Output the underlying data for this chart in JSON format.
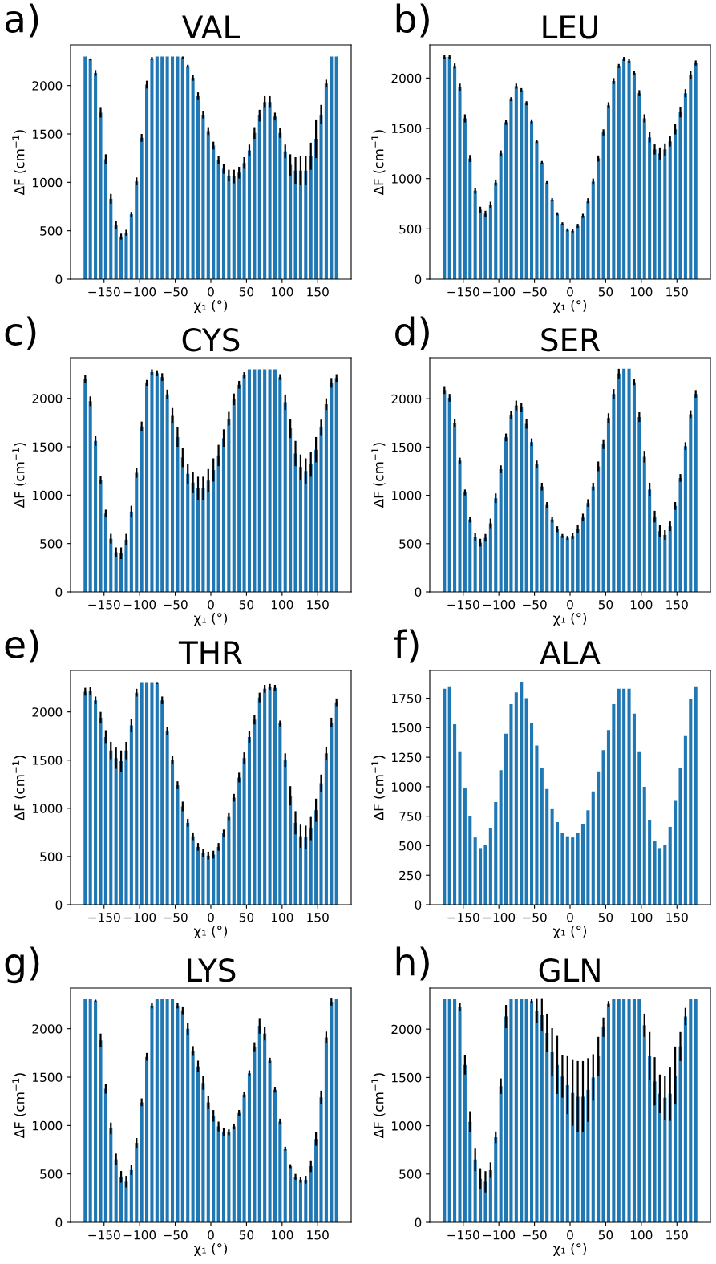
{
  "chart_data": [
    {
      "type": "bar",
      "title": "VAL",
      "annotations": [
        "a)"
      ],
      "xlabel": "χ₁ (°)",
      "ylabel": "ΔF (cm$^{−1}$)",
      "color": "#1f77b4",
      "grid": false,
      "x": [
        -176.4,
        -169.2,
        -162,
        -154.8,
        -147.6,
        -140.4,
        -133.2,
        -126,
        -118.8,
        -111.6,
        -104.4,
        -97.2,
        -90,
        -82.8,
        -75.6,
        -68.4,
        -61.2,
        -54,
        -46.8,
        -39.6,
        -32.4,
        -25.2,
        -18,
        -10.8,
        -3.6,
        3.6,
        10.8,
        18,
        25.2,
        32.4,
        39.6,
        46.8,
        54,
        61.2,
        68.4,
        75.6,
        82.8,
        90,
        97.2,
        104.4,
        111.6,
        118.8,
        126,
        133.2,
        140.4,
        147.6,
        154.8,
        162,
        169.2,
        176.4
      ],
      "values": [
        2300,
        2270,
        2130,
        1720,
        1240,
        830,
        560,
        440,
        480,
        670,
        1010,
        1460,
        2010,
        2280,
        2300,
        2300,
        2300,
        2300,
        2300,
        2290,
        2200,
        2080,
        1890,
        1700,
        1530,
        1380,
        1230,
        1140,
        1070,
        1060,
        1100,
        1200,
        1330,
        1510,
        1690,
        1830,
        1830,
        1680,
        1510,
        1320,
        1180,
        1120,
        1120,
        1120,
        1270,
        1450,
        1700,
        2020,
        2300,
        2300
      ],
      "errors": [
        null,
        10,
        30,
        50,
        50,
        50,
        40,
        30,
        30,
        25,
        40,
        40,
        40,
        15,
        null,
        null,
        null,
        null,
        null,
        10,
        15,
        30,
        40,
        40,
        40,
        40,
        40,
        50,
        60,
        70,
        60,
        60,
        60,
        60,
        60,
        60,
        60,
        40,
        50,
        70,
        110,
        140,
        150,
        150,
        140,
        200,
        100,
        40,
        null,
        null
      ],
      "xlim": [
        -197,
        197
      ],
      "xticks": [
        {
          "value": -150,
          "label": "−150"
        },
        {
          "value": -100,
          "label": "−100"
        },
        {
          "value": -50,
          "label": "−50"
        },
        0,
        50,
        100,
        150
      ],
      "ylim": [
        0,
        2420
      ],
      "yticks": [
        0,
        500,
        1000,
        1500,
        2000
      ]
    },
    {
      "type": "bar",
      "title": "LEU",
      "annotations": [
        "b)"
      ],
      "xlabel": "χ₁ (°)",
      "ylabel": "ΔF (cm$^{−1}$)",
      "color": "#1f77b4",
      "grid": false,
      "x": [
        -176.4,
        -169.2,
        -162,
        -154.8,
        -147.6,
        -140.4,
        -133.2,
        -126,
        -118.8,
        -111.6,
        -104.4,
        -97.2,
        -90,
        -82.8,
        -75.6,
        -68.4,
        -61.2,
        -54,
        -46.8,
        -39.6,
        -32.4,
        -25.2,
        -18,
        -10.8,
        -3.6,
        3.6,
        10.8,
        18,
        25.2,
        32.4,
        39.6,
        46.8,
        54,
        61.2,
        68.4,
        75.6,
        82.8,
        90,
        97.2,
        104.4,
        111.6,
        118.8,
        126,
        133.2,
        140.4,
        147.6,
        154.8,
        162,
        169.2,
        176.4
      ],
      "values": [
        2210,
        2210,
        2120,
        1910,
        1600,
        1200,
        880,
        690,
        650,
        740,
        960,
        1250,
        1560,
        1790,
        1920,
        1880,
        1750,
        1570,
        1370,
        1160,
        960,
        790,
        650,
        550,
        490,
        480,
        530,
        630,
        780,
        970,
        1200,
        1460,
        1730,
        1970,
        2120,
        2190,
        2170,
        2050,
        1850,
        1600,
        1410,
        1290,
        1250,
        1290,
        1370,
        1490,
        1660,
        1850,
        2030,
        2150
      ],
      "errors": [
        20,
        20,
        25,
        35,
        40,
        35,
        30,
        30,
        30,
        30,
        30,
        30,
        25,
        20,
        25,
        20,
        20,
        20,
        15,
        15,
        15,
        15,
        15,
        15,
        15,
        15,
        20,
        20,
        25,
        30,
        30,
        30,
        30,
        30,
        20,
        20,
        20,
        20,
        30,
        40,
        50,
        50,
        60,
        60,
        50,
        50,
        50,
        40,
        40,
        25
      ],
      "xlim": [
        -197,
        197
      ],
      "xticks": [
        {
          "value": -150,
          "label": "−150"
        },
        {
          "value": -100,
          "label": "−100"
        },
        {
          "value": -50,
          "label": "−50"
        },
        0,
        50,
        100,
        150
      ],
      "ylim": [
        0,
        2330
      ],
      "yticks": [
        0,
        500,
        1000,
        1500,
        2000
      ]
    },
    {
      "type": "bar",
      "title": "CYS",
      "annotations": [
        "c)"
      ],
      "xlabel": "χ₁ (°)",
      "ylabel": "ΔF (cm$^{−1}$)",
      "color": "#1f77b4",
      "grid": false,
      "x": [
        -176.4,
        -169.2,
        -162,
        -154.8,
        -147.6,
        -140.4,
        -133.2,
        -126,
        -118.8,
        -111.6,
        -104.4,
        -97.2,
        -90,
        -82.8,
        -75.6,
        -68.4,
        -61.2,
        -54,
        -46.8,
        -39.6,
        -32.4,
        -25.2,
        -18,
        -10.8,
        -3.6,
        3.6,
        10.8,
        18,
        25.2,
        32.4,
        39.6,
        46.8,
        54,
        61.2,
        68.4,
        75.6,
        82.8,
        90,
        97.2,
        104.4,
        111.6,
        118.8,
        126,
        133.2,
        140.4,
        147.6,
        154.8,
        162,
        169.2,
        176.4
      ],
      "values": [
        2200,
        1970,
        1560,
        1160,
        810,
        550,
        410,
        400,
        540,
        830,
        1230,
        1710,
        2160,
        2270,
        2260,
        2220,
        2040,
        1820,
        1600,
        1390,
        1220,
        1130,
        1070,
        1070,
        1150,
        1260,
        1410,
        1590,
        1790,
        1990,
        2140,
        2240,
        2300,
        2300,
        2300,
        2300,
        2300,
        2300,
        2220,
        1960,
        1690,
        1430,
        1290,
        1250,
        1320,
        1470,
        1700,
        1940,
        2160,
        2210
      ],
      "errors": [
        40,
        50,
        50,
        40,
        40,
        50,
        50,
        60,
        60,
        60,
        50,
        50,
        30,
        30,
        30,
        40,
        50,
        80,
        100,
        100,
        100,
        110,
        120,
        120,
        120,
        120,
        110,
        90,
        70,
        60,
        40,
        30,
        null,
        null,
        null,
        null,
        null,
        null,
        30,
        80,
        100,
        130,
        130,
        130,
        130,
        130,
        80,
        60,
        50,
        40
      ],
      "xlim": [
        -197,
        197
      ],
      "xticks": [
        {
          "value": -150,
          "label": "−150"
        },
        {
          "value": -100,
          "label": "−100"
        },
        {
          "value": -50,
          "label": "−50"
        },
        0,
        50,
        100,
        150
      ],
      "ylim": [
        0,
        2420
      ],
      "yticks": [
        0,
        500,
        1000,
        1500,
        2000
      ]
    },
    {
      "type": "bar",
      "title": "SER",
      "annotations": [
        "d)"
      ],
      "xlabel": "χ₁ (°)",
      "ylabel": "ΔF (cm$^{−1}$)",
      "color": "#1f77b4",
      "grid": false,
      "x": [
        -176.4,
        -169.2,
        -162,
        -154.8,
        -147.6,
        -140.4,
        -133.2,
        -126,
        -118.8,
        -111.6,
        -104.4,
        -97.2,
        -90,
        -82.8,
        -75.6,
        -68.4,
        -61.2,
        -54,
        -46.8,
        -39.6,
        -32.4,
        -25.2,
        -18,
        -10.8,
        -3.6,
        3.6,
        10.8,
        18,
        25.2,
        32.4,
        39.6,
        46.8,
        54,
        61.2,
        68.4,
        75.6,
        82.8,
        90,
        97.2,
        104.4,
        111.6,
        118.8,
        126,
        133.2,
        140.4,
        147.6,
        154.8,
        162,
        169.2,
        176.4
      ],
      "values": [
        2090,
        2010,
        1750,
        1360,
        1030,
        750,
        570,
        510,
        560,
        710,
        970,
        1270,
        1600,
        1830,
        1930,
        1910,
        1740,
        1550,
        1320,
        1090,
        900,
        750,
        650,
        580,
        560,
        580,
        650,
        770,
        920,
        1090,
        1300,
        1530,
        1800,
        2050,
        2260,
        2310,
        2310,
        2170,
        1810,
        1400,
        1060,
        780,
        630,
        590,
        680,
        890,
        1180,
        1510,
        1840,
        2050
      ],
      "errors": [
        40,
        40,
        40,
        30,
        30,
        30,
        40,
        40,
        40,
        50,
        50,
        40,
        40,
        40,
        50,
        50,
        50,
        40,
        40,
        40,
        30,
        30,
        30,
        20,
        20,
        30,
        40,
        40,
        40,
        40,
        50,
        50,
        50,
        50,
        50,
        null,
        null,
        30,
        50,
        60,
        70,
        60,
        60,
        50,
        50,
        40,
        40,
        40,
        40,
        40
      ],
      "xlim": [
        -197,
        197
      ],
      "xticks": [
        {
          "value": -150,
          "label": "−150"
        },
        {
          "value": -100,
          "label": "−100"
        },
        {
          "value": -50,
          "label": "−50"
        },
        0,
        50,
        100,
        150
      ],
      "ylim": [
        0,
        2425
      ],
      "yticks": [
        0,
        500,
        1000,
        1500,
        2000
      ]
    },
    {
      "type": "bar",
      "title": "THR",
      "annotations": [
        "e)"
      ],
      "xlabel": "χ₁ (°)",
      "ylabel": "ΔF (cm$^{−1}$)",
      "color": "#1f77b4",
      "grid": false,
      "x": [
        -176.4,
        -169.2,
        -162,
        -154.8,
        -147.6,
        -140.4,
        -133.2,
        -126,
        -118.8,
        -111.6,
        -104.4,
        -97.2,
        -90,
        -82.8,
        -75.6,
        -68.4,
        -61.2,
        -54,
        -46.8,
        -39.6,
        -32.4,
        -25.2,
        -18,
        -10.8,
        -3.6,
        3.6,
        10.8,
        18,
        25.2,
        32.4,
        39.6,
        46.8,
        54,
        61.2,
        68.4,
        75.6,
        82.8,
        90,
        97.2,
        104.4,
        111.6,
        118.8,
        126,
        133.2,
        140.4,
        147.6,
        154.8,
        162,
        169.2,
        176.4
      ],
      "values": [
        2210,
        2220,
        2120,
        1940,
        1740,
        1600,
        1520,
        1490,
        1600,
        1860,
        2200,
        2310,
        2310,
        2310,
        2300,
        2120,
        1800,
        1500,
        1240,
        1020,
        850,
        710,
        600,
        540,
        510,
        520,
        600,
        740,
        910,
        1110,
        1320,
        1520,
        1740,
        1920,
        2150,
        2240,
        2260,
        2250,
        1880,
        1500,
        1130,
        850,
        710,
        700,
        790,
        980,
        1260,
        1570,
        1890,
        2100
      ],
      "errors": [
        40,
        40,
        40,
        60,
        70,
        90,
        110,
        110,
        90,
        70,
        40,
        null,
        null,
        null,
        10,
        40,
        40,
        40,
        40,
        50,
        40,
        40,
        40,
        40,
        40,
        40,
        40,
        40,
        40,
        40,
        50,
        60,
        60,
        50,
        50,
        40,
        30,
        30,
        30,
        70,
        100,
        120,
        120,
        120,
        120,
        120,
        90,
        70,
        50,
        40
      ],
      "xlim": [
        -197,
        197
      ],
      "xticks": [
        {
          "value": -150,
          "label": "−150"
        },
        {
          "value": -100,
          "label": "−100"
        },
        {
          "value": -50,
          "label": "−50"
        },
        0,
        50,
        100,
        150
      ],
      "ylim": [
        0,
        2430
      ],
      "yticks": [
        0,
        500,
        1000,
        1500,
        2000
      ]
    },
    {
      "type": "bar",
      "title": "ALA",
      "annotations": [
        "f)"
      ],
      "xlabel": "χ₁ (°)",
      "ylabel": "ΔF (cm$^{−1}$)",
      "color": "#1f77b4",
      "grid": false,
      "x": [
        -176.4,
        -169.2,
        -162,
        -154.8,
        -147.6,
        -140.4,
        -133.2,
        -126,
        -118.8,
        -111.6,
        -104.4,
        -97.2,
        -90,
        -82.8,
        -75.6,
        -68.4,
        -61.2,
        -54,
        -46.8,
        -39.6,
        -32.4,
        -25.2,
        -18,
        -10.8,
        -3.6,
        3.6,
        10.8,
        18,
        25.2,
        32.4,
        39.6,
        46.8,
        54,
        61.2,
        68.4,
        75.6,
        82.8,
        90,
        97.2,
        104.4,
        111.6,
        118.8,
        126,
        133.2,
        140.4,
        147.6,
        154.8,
        162,
        169.2,
        176.4
      ],
      "values": [
        1830,
        1850,
        1530,
        1300,
        990,
        750,
        570,
        480,
        510,
        650,
        870,
        1140,
        1450,
        1700,
        1800,
        1890,
        1750,
        1540,
        1350,
        1160,
        980,
        810,
        700,
        610,
        580,
        570,
        610,
        680,
        800,
        960,
        1130,
        1310,
        1480,
        1700,
        1830,
        1830,
        1830,
        1620,
        1300,
        1000,
        720,
        540,
        480,
        510,
        660,
        880,
        1160,
        1430,
        1740,
        1850
      ],
      "xlim": [
        -197,
        197
      ],
      "xticks": [
        {
          "value": -150,
          "label": "−150"
        },
        {
          "value": -100,
          "label": "−100"
        },
        {
          "value": -50,
          "label": "−50"
        },
        0,
        50,
        100,
        150
      ],
      "ylim": [
        0,
        1985
      ],
      "yticks": [
        0,
        250,
        500,
        750,
        1000,
        1250,
        1500,
        1750
      ]
    },
    {
      "type": "bar",
      "title": "LYS",
      "annotations": [
        "g)"
      ],
      "xlabel": "χ₁ (°)",
      "ylabel": "ΔF (cm$^{−1}$)",
      "color": "#1f77b4",
      "grid": false,
      "x": [
        -176.4,
        -169.2,
        -162,
        -154.8,
        -147.6,
        -140.4,
        -133.2,
        -126,
        -118.8,
        -111.6,
        -104.4,
        -97.2,
        -90,
        -82.8,
        -75.6,
        -68.4,
        -61.2,
        -54,
        -46.8,
        -39.6,
        -32.4,
        -25.2,
        -18,
        -10.8,
        -3.6,
        3.6,
        10.8,
        18,
        25.2,
        32.4,
        39.6,
        46.8,
        54,
        61.2,
        68.4,
        75.6,
        82.8,
        90,
        97.2,
        104.4,
        111.6,
        118.8,
        126,
        133.2,
        140.4,
        147.6,
        154.8,
        162,
        169.2,
        176.4
      ],
      "values": [
        2310,
        2310,
        2290,
        1880,
        1380,
        970,
        650,
        470,
        420,
        540,
        820,
        1240,
        1710,
        2240,
        2310,
        2310,
        2310,
        2310,
        2240,
        2190,
        2000,
        1770,
        1610,
        1440,
        1240,
        1100,
        990,
        930,
        930,
        990,
        1130,
        1320,
        1540,
        1810,
        2030,
        1950,
        1670,
        1370,
        1040,
        760,
        580,
        470,
        440,
        440,
        580,
        860,
        1290,
        1910,
        2280,
        2310
      ],
      "errors": [
        null,
        null,
        10,
        70,
        50,
        60,
        60,
        60,
        60,
        50,
        50,
        40,
        40,
        30,
        null,
        null,
        null,
        null,
        30,
        40,
        60,
        50,
        60,
        70,
        70,
        60,
        50,
        40,
        30,
        30,
        30,
        30,
        30,
        50,
        80,
        70,
        30,
        30,
        30,
        20,
        20,
        30,
        30,
        40,
        60,
        70,
        70,
        60,
        40,
        null
      ],
      "xlim": [
        -197,
        197
      ],
      "xticks": [
        {
          "value": -150,
          "label": "−150"
        },
        {
          "value": -100,
          "label": "−100"
        },
        {
          "value": -50,
          "label": "−50"
        },
        0,
        50,
        100,
        150
      ],
      "ylim": [
        0,
        2420
      ],
      "yticks": [
        0,
        500,
        1000,
        1500,
        2000
      ]
    },
    {
      "type": "bar",
      "title": "GLN",
      "annotations": [
        "h)"
      ],
      "xlabel": "χ₁ (°)",
      "ylabel": "ΔF (cm$^{−1}$)",
      "color": "#1f77b4",
      "grid": false,
      "x": [
        -176.4,
        -169.2,
        -162,
        -154.8,
        -147.6,
        -140.4,
        -133.2,
        -126,
        -118.8,
        -111.6,
        -104.4,
        -97.2,
        -90,
        -82.8,
        -75.6,
        -68.4,
        -61.2,
        -54,
        -46.8,
        -39.6,
        -32.4,
        -25.2,
        -18,
        -10.8,
        -3.6,
        3.6,
        10.8,
        18,
        25.2,
        32.4,
        39.6,
        46.8,
        54,
        61.2,
        68.4,
        75.6,
        82.8,
        90,
        97.2,
        104.4,
        111.6,
        118.8,
        126,
        133.2,
        140.4,
        147.6,
        154.8,
        162,
        169.2,
        176.4
      ],
      "values": [
        2310,
        2310,
        2310,
        2230,
        1630,
        1040,
        650,
        450,
        420,
        540,
        880,
        1410,
        2130,
        2310,
        2310,
        2310,
        2310,
        2290,
        2190,
        2150,
        1960,
        1760,
        1630,
        1510,
        1420,
        1340,
        1300,
        1300,
        1370,
        1500,
        1720,
        2020,
        2260,
        2310,
        2310,
        2310,
        2310,
        2310,
        2310,
        2040,
        1720,
        1460,
        1330,
        1290,
        1330,
        1520,
        1820,
        2130,
        2310,
        2310
      ],
      "errors": [
        null,
        null,
        null,
        40,
        100,
        110,
        120,
        110,
        110,
        80,
        60,
        80,
        120,
        null,
        null,
        null,
        null,
        20,
        130,
        170,
        200,
        250,
        300,
        220,
        300,
        340,
        370,
        370,
        330,
        240,
        200,
        100,
        30,
        null,
        null,
        null,
        null,
        null,
        null,
        120,
        250,
        250,
        200,
        230,
        280,
        300,
        150,
        90,
        null,
        null
      ],
      "xlim": [
        -197,
        197
      ],
      "xticks": [
        {
          "value": -150,
          "label": "−150"
        },
        {
          "value": -100,
          "label": "−100"
        },
        {
          "value": -50,
          "label": "−50"
        },
        0,
        50,
        100,
        150
      ],
      "ylim": [
        0,
        2425
      ],
      "yticks": [
        0,
        500,
        1000,
        1500,
        2000
      ]
    }
  ]
}
